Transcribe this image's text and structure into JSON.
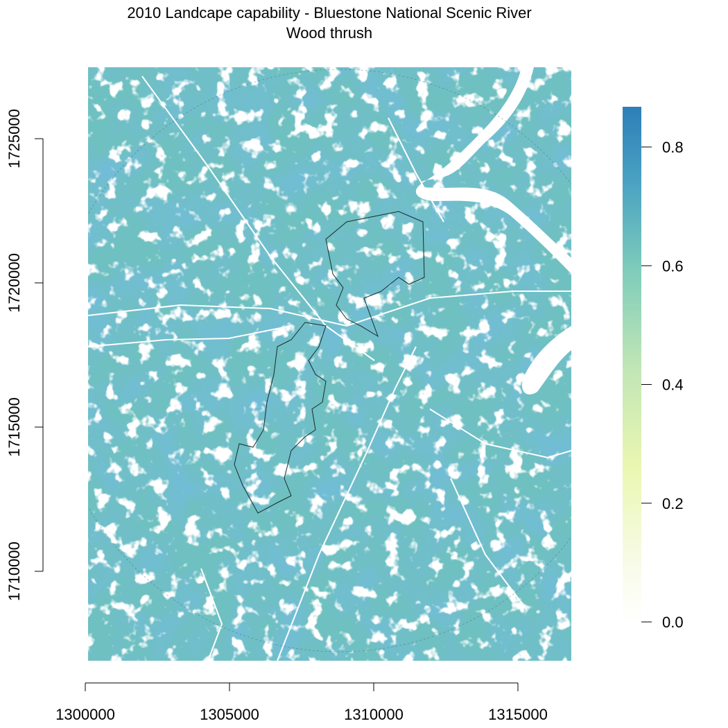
{
  "title": {
    "line1": "2010 Landcape capability - Bluestone National Scenic River",
    "line2": "Wood thrush"
  },
  "chart_data": {
    "type": "heatmap",
    "title": "2010 Landcape capability - Bluestone National Scenic River",
    "subtitle": "Wood thrush",
    "xlim": [
      1301200,
      1317000
    ],
    "ylim": [
      1707200,
      1727800
    ],
    "x_ticks": [
      1300000,
      1305000,
      1310000,
      1315000
    ],
    "x_tick_labels": [
      "1300000",
      "1305000",
      "1310000",
      "1315000"
    ],
    "y_ticks": [
      1710000,
      1715000,
      1720000,
      1725000
    ],
    "y_tick_labels": [
      "1710000",
      "1715000",
      "1720000",
      "1725000"
    ],
    "legend": {
      "min": 0.0,
      "max": 0.86,
      "ticks": [
        0.0,
        0.2,
        0.4,
        0.6,
        0.8
      ],
      "tick_labels": [
        "0.0",
        "0.2",
        "0.4",
        "0.6",
        "0.8"
      ],
      "colors": [
        "#ffffff",
        "#f2f9d8",
        "#eaf7b1",
        "#c8e9b4",
        "#7fcdbb",
        "#41b6c4",
        "#2c7fb8"
      ]
    },
    "grid": false
  }
}
